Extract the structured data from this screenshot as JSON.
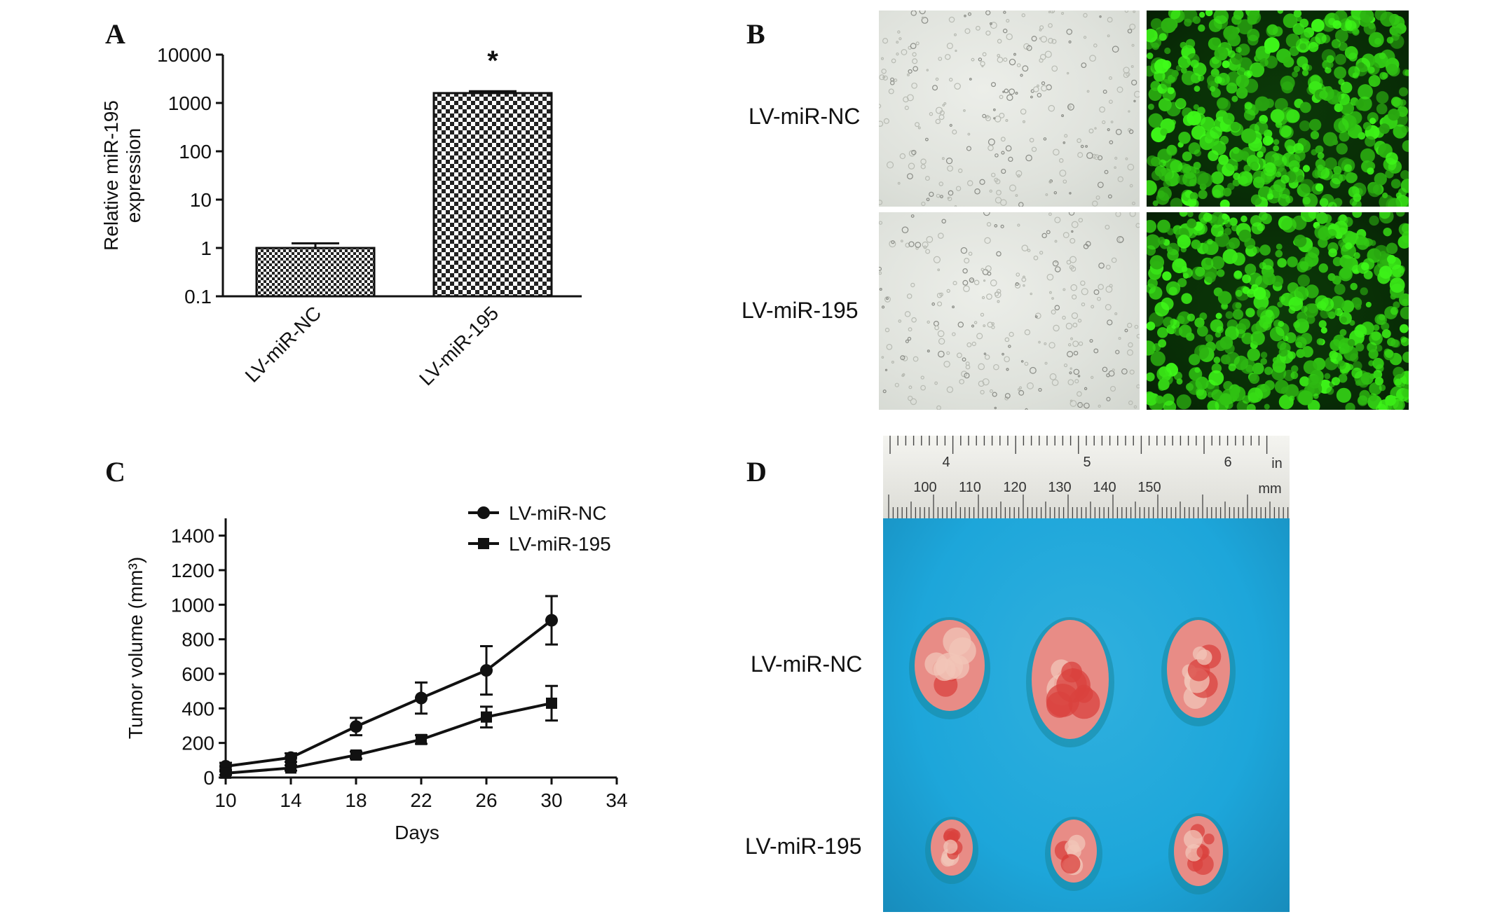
{
  "panels": {
    "a": "A",
    "b": "B",
    "c": "C",
    "d": "D"
  },
  "chart_data": [
    {
      "type": "bar",
      "panel": "A",
      "categories": [
        "LV-miR-NC",
        "LV-miR-195"
      ],
      "values": [
        1,
        1600
      ],
      "errors": [
        0.25,
        150
      ],
      "ylabel_lines": [
        "Relative miR-195",
        "expression"
      ],
      "yscale": "log",
      "ylim": [
        0.1,
        10000
      ],
      "yticks": [
        "0.1",
        "1",
        "10",
        "100",
        "1000",
        "10000"
      ],
      "annotation": "*",
      "bar_fill": "checkerboard"
    },
    {
      "type": "line",
      "panel": "C",
      "x": [
        10,
        14,
        18,
        22,
        26,
        30
      ],
      "series": [
        {
          "name": "LV-miR-NC",
          "marker": "circle",
          "values": [
            65,
            115,
            295,
            460,
            620,
            910
          ],
          "errors": [
            20,
            25,
            50,
            90,
            140,
            140
          ]
        },
        {
          "name": "LV-miR-195",
          "marker": "square",
          "values": [
            25,
            55,
            130,
            220,
            350,
            430
          ],
          "errors": [
            10,
            15,
            20,
            25,
            60,
            100
          ]
        }
      ],
      "xlabel": "Days",
      "ylabel": "Tumor volume (mm³)",
      "xlim": [
        10,
        34
      ],
      "xticks": [
        "10",
        "14",
        "18",
        "22",
        "26",
        "30",
        "34"
      ],
      "ylim": [
        0,
        1500
      ],
      "yticks": [
        "0",
        "200",
        "400",
        "600",
        "800",
        "1000",
        "1200",
        "1400"
      ],
      "legend_position": "top-right"
    }
  ],
  "panel_b": {
    "row_labels": [
      "LV-miR-NC",
      "LV-miR-195"
    ]
  },
  "panel_d": {
    "row_labels": [
      "LV-miR-NC",
      "LV-miR-195"
    ],
    "ruler": {
      "inch_labels": [
        "4",
        "5",
        "6"
      ],
      "inch_unit": "in",
      "mm_labels": [
        "100",
        "110",
        "120",
        "130",
        "140",
        "150"
      ],
      "mm_unit": "mm"
    }
  },
  "colors": {
    "fluorescence": "#3ddc2a",
    "tray_blue": "#1da6da",
    "tumor": "#e88c86"
  }
}
